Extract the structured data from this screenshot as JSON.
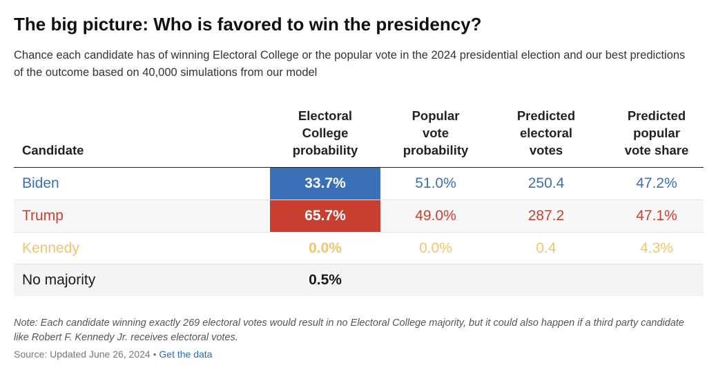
{
  "title": "The big picture: Who is favored to win the presidency?",
  "subtitle": "Chance each candidate has of winning Electoral College or the popular vote in the 2024 presidential election and our best predictions of the outcome based on 40,000 simulations from our model",
  "colors": {
    "biden": "#3b6fb6",
    "trump": "#c7402f",
    "kennedy": "#f2c46d",
    "neutral": "#1a1a1a",
    "link": "#2a6ab4"
  },
  "chart_data": {
    "type": "table",
    "title": "The big picture: Who is favored to win the presidency?",
    "columns": [
      {
        "key": "candidate",
        "label": "Candidate"
      },
      {
        "key": "ec_prob",
        "label": "Electoral College probability"
      },
      {
        "key": "pop_prob",
        "label": "Popular vote probability"
      },
      {
        "key": "pred_ev",
        "label": "Predicted electoral votes"
      },
      {
        "key": "pred_share",
        "label": "Predicted popular vote share"
      }
    ],
    "rows": [
      {
        "candidate": "Biden",
        "ec_prob": "33.7%",
        "pop_prob": "51.0%",
        "pred_ev": "250.4",
        "pred_share": "47.2%",
        "color": "#3b6fb6",
        "highlight": true
      },
      {
        "candidate": "Trump",
        "ec_prob": "65.7%",
        "pop_prob": "49.0%",
        "pred_ev": "287.2",
        "pred_share": "47.1%",
        "color": "#c7402f",
        "highlight": true
      },
      {
        "candidate": "Kennedy",
        "ec_prob": "0.0%",
        "pop_prob": "0.0%",
        "pred_ev": "0.4",
        "pred_share": "4.3%",
        "color": "#f2c46d",
        "highlight": false
      },
      {
        "candidate": "No majority",
        "ec_prob": "0.5%",
        "pop_prob": "",
        "pred_ev": "",
        "pred_share": "",
        "color": "#1a1a1a",
        "highlight": false
      }
    ]
  },
  "header": {
    "candidate": "Candidate",
    "ec_line1": "Electoral",
    "ec_line2": "College",
    "ec_line3": "probability",
    "pop_line1": "Popular",
    "pop_line2": "vote",
    "pop_line3": "probability",
    "ev_line1": "Predicted",
    "ev_line2": "electoral",
    "ev_line3": "votes",
    "share_line1": "Predicted",
    "share_line2": "popular",
    "share_line3": "vote share"
  },
  "note": "Note: Each candidate winning exactly 269 electoral votes would result in no Electoral College majority, but it could also happen if a third party candidate like Robert F. Kennedy Jr. receives electoral votes.",
  "source": {
    "text": "Source: Updated June 26, 2024",
    "separator": " • ",
    "link_label": "Get the data"
  }
}
